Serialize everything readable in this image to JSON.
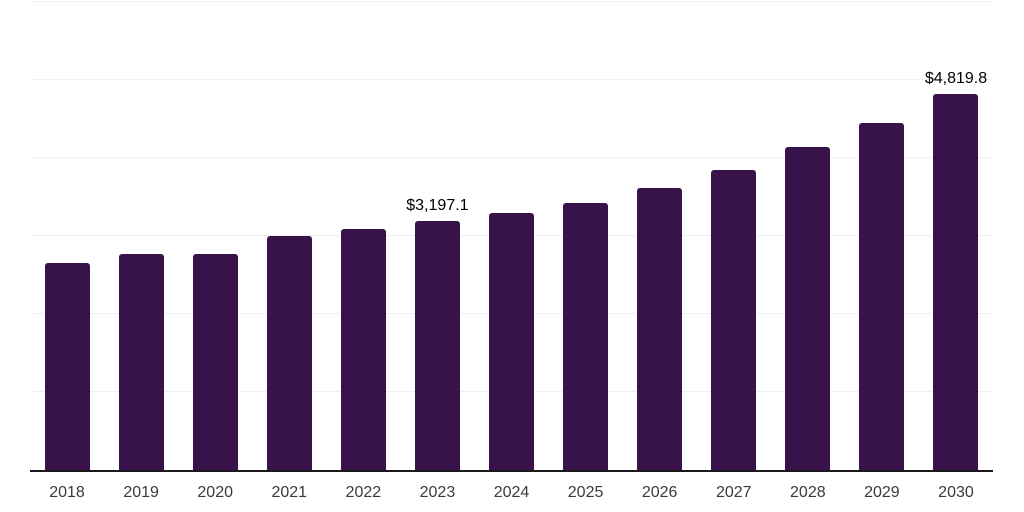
{
  "chart_data": {
    "type": "bar",
    "title": "",
    "xlabel": "",
    "ylabel": "",
    "categories": [
      "2018",
      "2019",
      "2020",
      "2021",
      "2022",
      "2023",
      "2024",
      "2025",
      "2026",
      "2027",
      "2028",
      "2029",
      "2030"
    ],
    "values": [
      2650,
      2775,
      2765,
      3000,
      3095,
      3197.1,
      3290,
      3420,
      3620,
      3850,
      4135,
      4450,
      4819.8
    ],
    "bar_labels": [
      "",
      "",
      "",
      "",
      "",
      "$3,197.1",
      "",
      "",
      "",
      "",
      "",
      "",
      "$4,819.8"
    ],
    "ylim": [
      0,
      6000
    ],
    "gridline_interval": 1000,
    "grid": "horizontal",
    "legend_position": "none",
    "y_axis_tick_labels_visible": false
  },
  "style": {
    "bar_color": "#37124b",
    "gridline_color": "#efefef",
    "axis_color": "#1a1a1a",
    "tick_label_color": "#3a3a3a",
    "data_label_color": "#000000",
    "background_color": "#ffffff"
  }
}
